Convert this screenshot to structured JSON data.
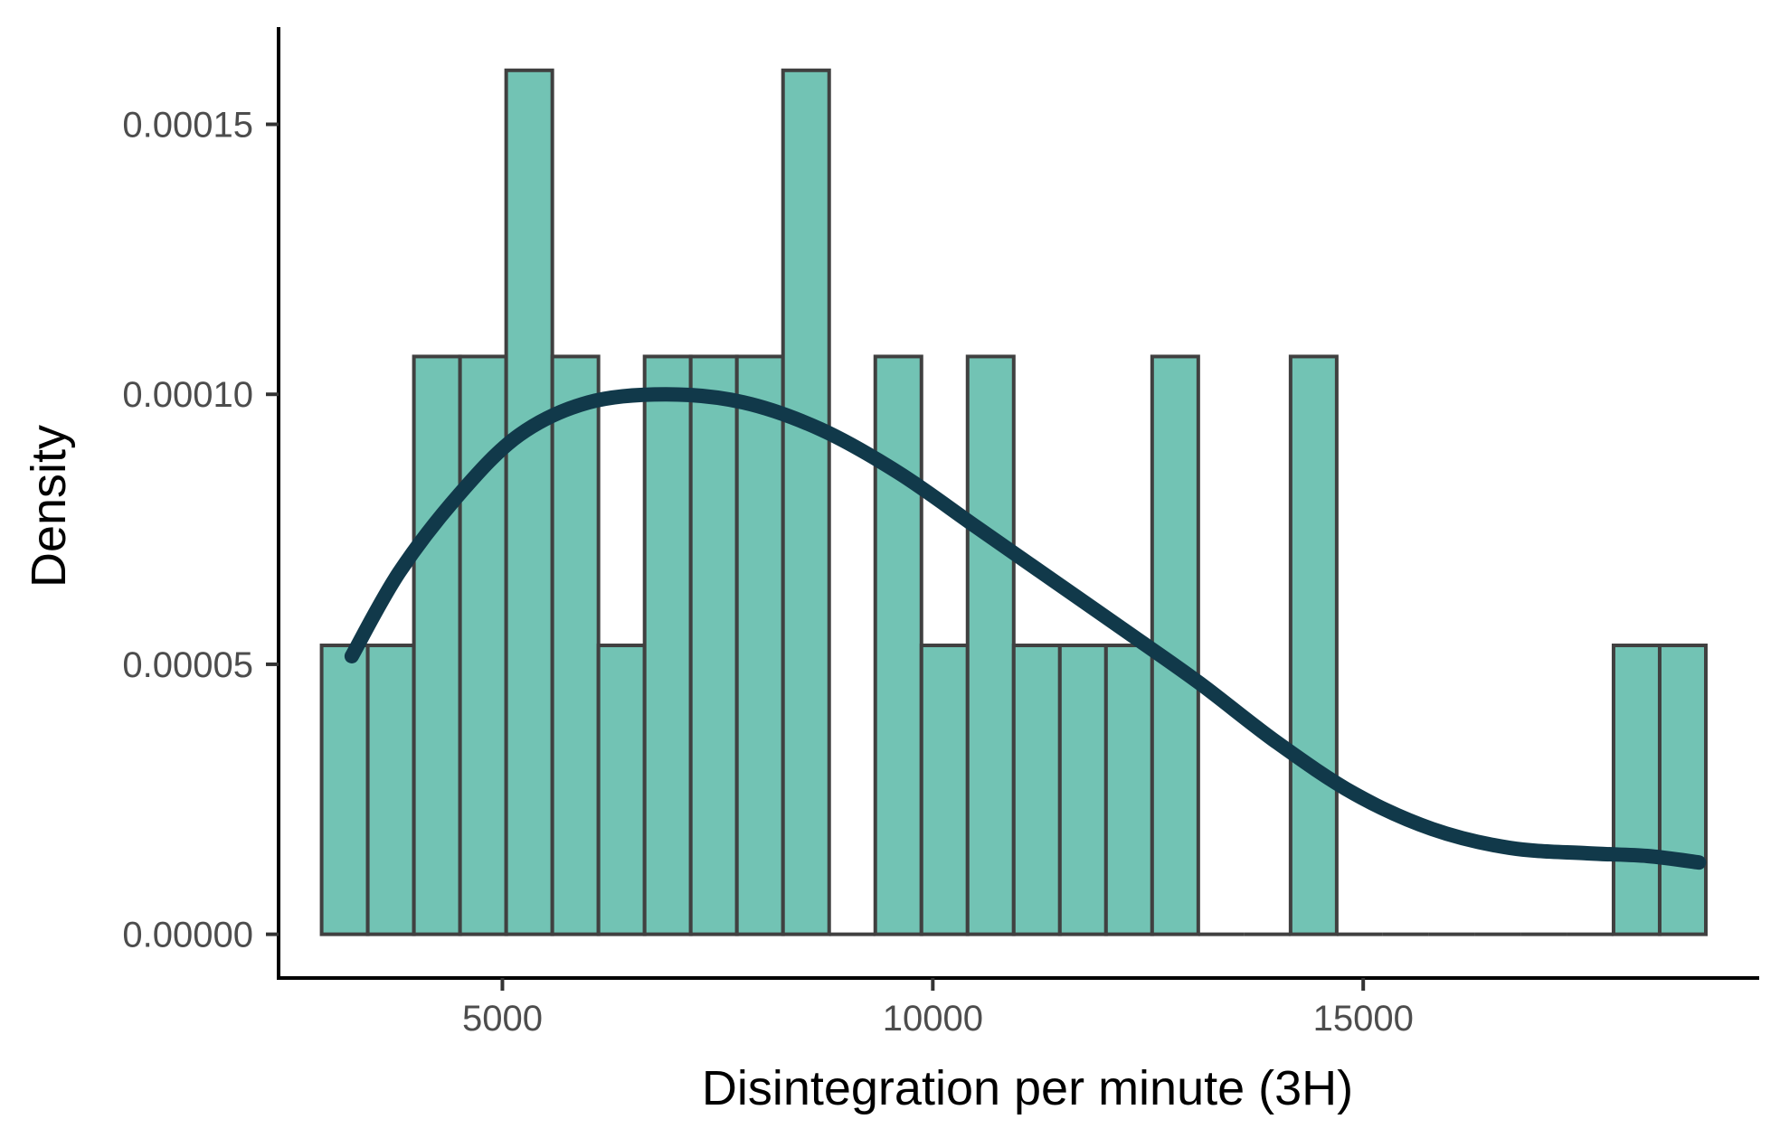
{
  "chart_data": {
    "type": "bar",
    "subtype": "histogram-with-density",
    "title": "",
    "xlabel": "Disintegration per minute (3H)",
    "ylabel": "Density",
    "xlim": [
      2400,
      19600
    ],
    "ylim": [
      -8.1e-06,
      0.000168
    ],
    "x_ticks": [
      5000,
      10000,
      15000
    ],
    "x_tick_labels": [
      "5000",
      "10000",
      "15000"
    ],
    "y_ticks": [
      0,
      5e-05,
      0.0001,
      0.00015
    ],
    "y_tick_labels": [
      "0.00000",
      "0.00005",
      "0.00010",
      "0.00015"
    ],
    "bins": [
      {
        "x0": 2900,
        "x1": 3436,
        "density": 5.35e-05
      },
      {
        "x0": 3436,
        "x1": 3972,
        "density": 5.35e-05
      },
      {
        "x0": 3972,
        "x1": 4508,
        "density": 0.000107
      },
      {
        "x0": 4508,
        "x1": 5044,
        "density": 0.000107
      },
      {
        "x0": 5044,
        "x1": 5580,
        "density": 0.00016
      },
      {
        "x0": 5580,
        "x1": 6116,
        "density": 0.000107
      },
      {
        "x0": 6116,
        "x1": 6652,
        "density": 5.35e-05
      },
      {
        "x0": 6652,
        "x1": 7188,
        "density": 0.000107
      },
      {
        "x0": 7188,
        "x1": 7724,
        "density": 0.000107
      },
      {
        "x0": 7724,
        "x1": 8260,
        "density": 0.000107
      },
      {
        "x0": 8260,
        "x1": 8796,
        "density": 0.00016
      },
      {
        "x0": 8796,
        "x1": 9332,
        "density": 0
      },
      {
        "x0": 9332,
        "x1": 9868,
        "density": 0.000107
      },
      {
        "x0": 9868,
        "x1": 10404,
        "density": 5.35e-05
      },
      {
        "x0": 10404,
        "x1": 10940,
        "density": 0.000107
      },
      {
        "x0": 10940,
        "x1": 11476,
        "density": 5.35e-05
      },
      {
        "x0": 11476,
        "x1": 12012,
        "density": 5.35e-05
      },
      {
        "x0": 12012,
        "x1": 12548,
        "density": 5.35e-05
      },
      {
        "x0": 12548,
        "x1": 13084,
        "density": 0.000107
      },
      {
        "x0": 13084,
        "x1": 13620,
        "density": 0
      },
      {
        "x0": 13620,
        "x1": 14156,
        "density": 0
      },
      {
        "x0": 14156,
        "x1": 14692,
        "density": 0.000107
      },
      {
        "x0": 14692,
        "x1": 15228,
        "density": 0
      },
      {
        "x0": 15228,
        "x1": 15764,
        "density": 0
      },
      {
        "x0": 15764,
        "x1": 16300,
        "density": 0
      },
      {
        "x0": 16300,
        "x1": 16836,
        "density": 0
      },
      {
        "x0": 16836,
        "x1": 17372,
        "density": 0
      },
      {
        "x0": 17372,
        "x1": 17908,
        "density": 0
      },
      {
        "x0": 17908,
        "x1": 18444,
        "density": 5.35e-05
      },
      {
        "x0": 18444,
        "x1": 18980,
        "density": 5.35e-05
      }
    ],
    "density_curve": {
      "x": [
        3250,
        3800,
        4500,
        5200,
        6000,
        6900,
        7800,
        8700,
        9600,
        10500,
        11400,
        12300,
        13100,
        14000,
        14900,
        15800,
        16700,
        17600,
        18300,
        18900
      ],
      "y": [
        5.15e-05,
        6.7e-05,
        8.15e-05,
        9.25e-05,
        9.85e-05,
        0.0001,
        9.85e-05,
        9.35e-05,
        8.55e-05,
        7.55e-05,
        6.55e-05,
        5.55e-05,
        4.65e-05,
        3.55e-05,
        2.6e-05,
        1.95e-05,
        1.6e-05,
        1.5e-05,
        1.45e-05,
        1.33e-05
      ]
    },
    "colors": {
      "bar_fill": "#72c3b4",
      "bar_stroke": "#404040",
      "curve": "#11394a",
      "axis": "#000000",
      "tick_label": "#4d4d4d"
    },
    "grid": false,
    "legend": "none"
  }
}
